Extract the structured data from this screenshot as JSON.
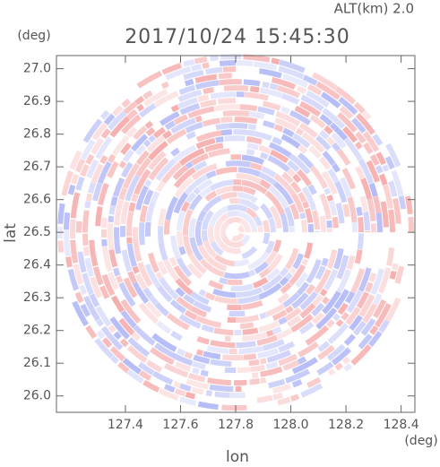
{
  "chart_data": {
    "type": "radar-ppi",
    "title": "2017/10/24 15:45:30",
    "subtitle": "ALT(km) 2.0",
    "x_label": "lon",
    "y_label": "lat",
    "x_unit": "(deg)",
    "y_unit": "(deg)",
    "xlim": [
      127.15,
      128.45
    ],
    "xticks": [
      127.4,
      127.6,
      127.8,
      {
        "value": 128.0,
        "label": "128.0"
      },
      128.2,
      128.4
    ],
    "ylim": [
      25.95,
      27.04
    ],
    "yticks": [
      {
        "value": 26.0,
        "label": "26.0"
      },
      26.1,
      26.2,
      26.3,
      26.4,
      26.5,
      26.6,
      26.7,
      26.8,
      26.9,
      {
        "value": 27.0,
        "label": "27.0"
      }
    ],
    "center": [
      127.8,
      26.5
    ],
    "range_deg": 0.65,
    "colors": [
      "#f5a0a0",
      "#a8b0f5"
    ]
  }
}
